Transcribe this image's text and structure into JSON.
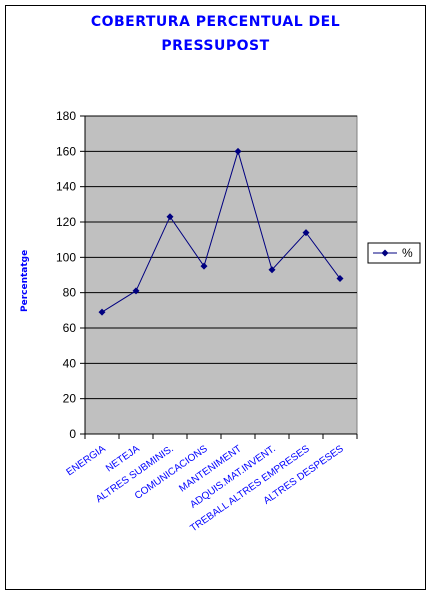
{
  "chart_data": {
    "type": "line",
    "title_line1": "COBERTURA PERCENTUAL DEL",
    "title_line2": "PRESSUPOST",
    "xlabel": "",
    "ylabel": "Percentatge",
    "categories": [
      "ENERGIA",
      "NETEJA",
      "ALTRES SUBMINIS.",
      "COMUNICACIONS",
      "MANTENIMENT",
      "ADQUIS.MAT.INVENT.",
      "TREBALL ALTRES EMPRESES",
      "ALTRES DESPESES"
    ],
    "series": [
      {
        "name": "%",
        "values": [
          69,
          81,
          123,
          95,
          160,
          93,
          114,
          88
        ]
      }
    ],
    "ylim": [
      0,
      180
    ],
    "yticks": [
      0,
      20,
      40,
      60,
      80,
      100,
      120,
      140,
      160,
      180
    ],
    "grid": true,
    "legend_position": "right",
    "colors": {
      "plot_bg": "#c0c0c0",
      "line": "#000080",
      "marker": "#000080",
      "title": "#0000ff",
      "category_labels": "#0000ff"
    }
  }
}
